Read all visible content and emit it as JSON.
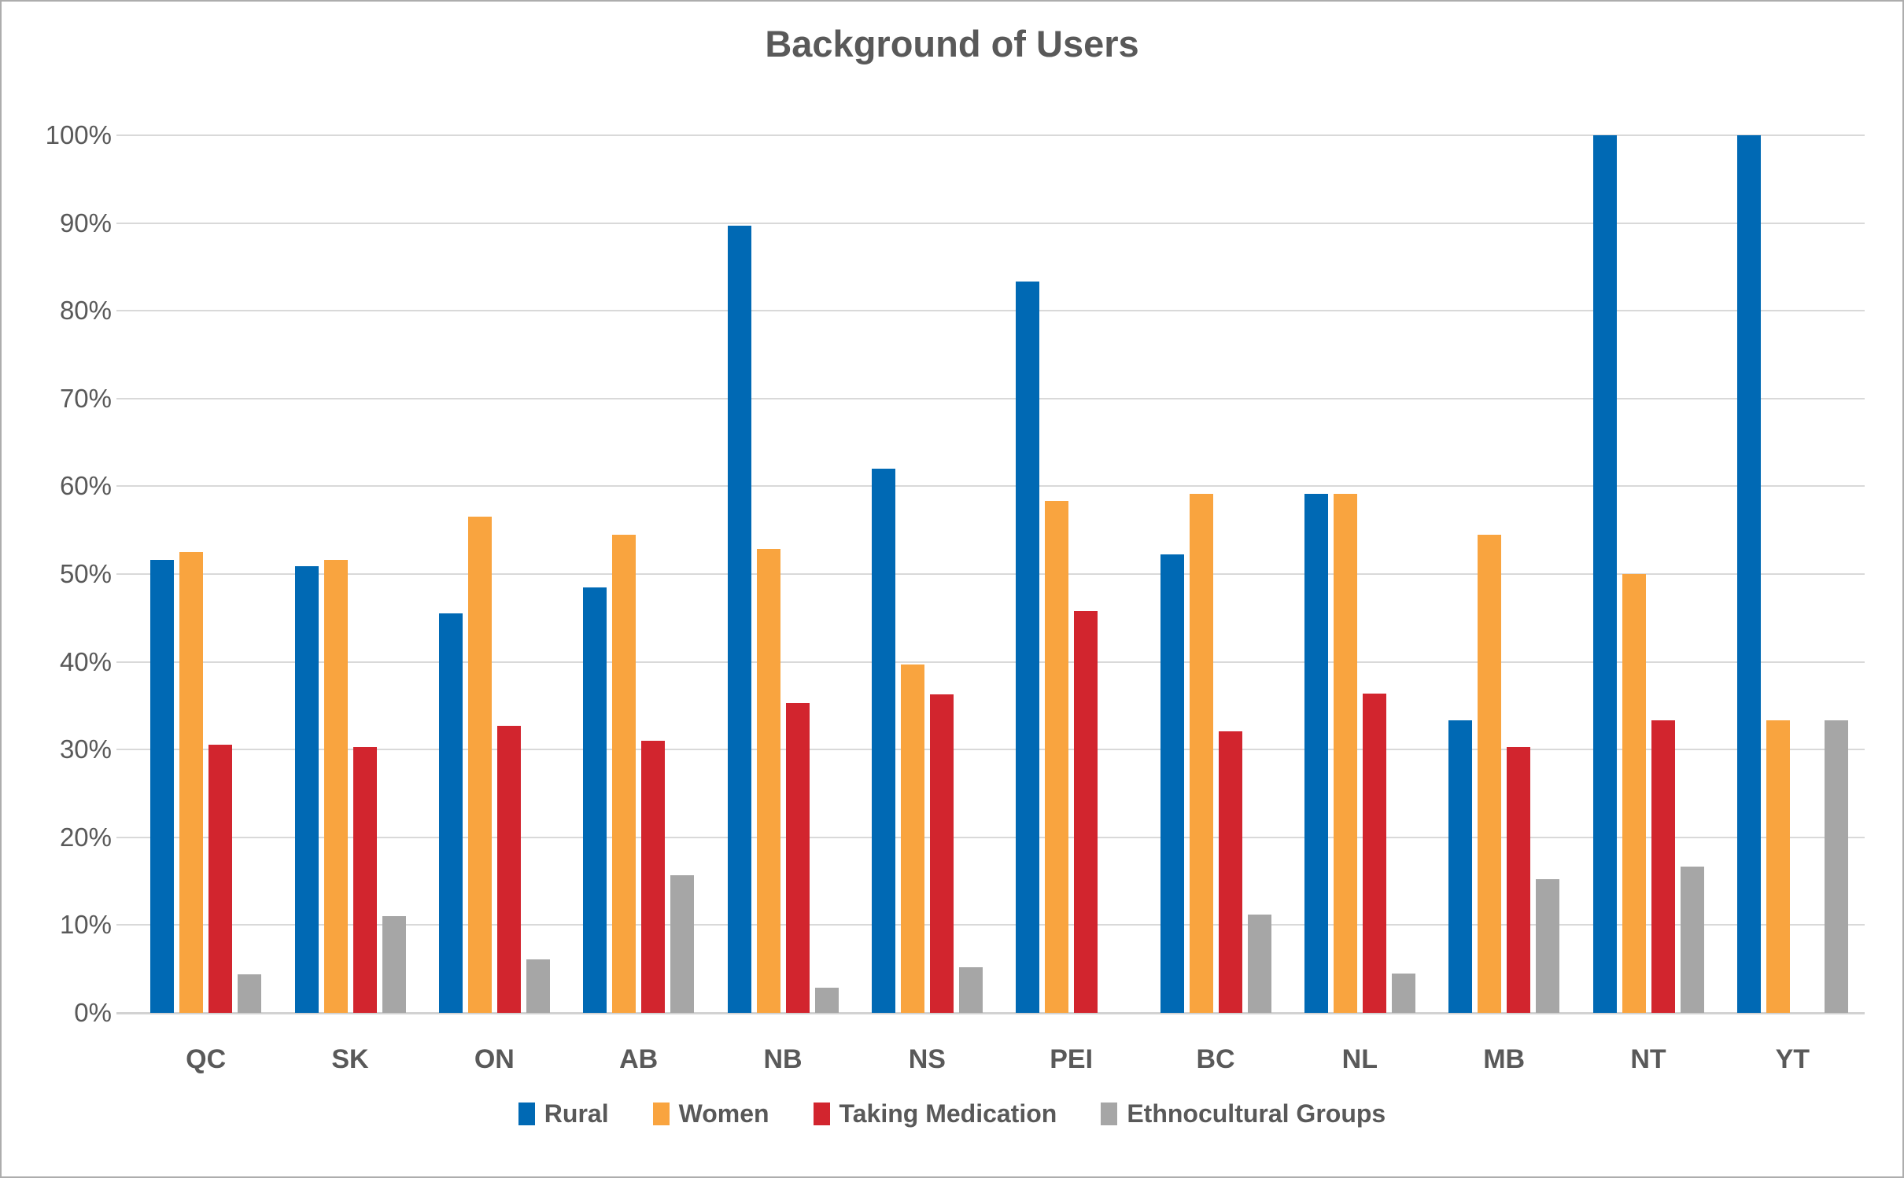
{
  "title": "Background of Users",
  "colors": {
    "text": "#595959",
    "gridline": "#d9d9d9",
    "axis_line": "#d2d2d2",
    "series_rural": "#0069B4",
    "series_women": "#F9A43F",
    "series_taking_medication": "#D2252E",
    "series_ethnocultural": "#A6A6A6"
  },
  "chart_data": {
    "type": "bar",
    "title": "Background of Users",
    "xlabel": "",
    "ylabel": "",
    "ylim": [
      0,
      100
    ],
    "grid": true,
    "legend_position": "bottom",
    "y_tick_labels": [
      "0%",
      "10%",
      "20%",
      "30%",
      "40%",
      "50%",
      "60%",
      "70%",
      "80%",
      "90%",
      "100%"
    ],
    "categories": [
      "QC",
      "SK",
      "ON",
      "AB",
      "NB",
      "NS",
      "PEI",
      "BC",
      "NL",
      "MB",
      "NT",
      "YT"
    ],
    "series": [
      {
        "name": "Rural",
        "color": "#0069B4",
        "values": [
          51.6,
          50.9,
          45.5,
          48.5,
          89.7,
          62.0,
          83.3,
          52.2,
          59.1,
          33.3,
          100,
          100
        ]
      },
      {
        "name": "Women",
        "color": "#F9A43F",
        "values": [
          52.5,
          51.6,
          56.5,
          54.5,
          52.9,
          39.7,
          58.3,
          59.1,
          59.1,
          54.5,
          50.0,
          33.3
        ]
      },
      {
        "name": "Taking Medication",
        "color": "#D2252E",
        "values": [
          30.6,
          30.3,
          32.7,
          31.0,
          35.3,
          36.3,
          45.8,
          32.1,
          36.4,
          30.3,
          33.3,
          0
        ]
      },
      {
        "name": "Ethnocultural Groups",
        "color": "#A6A6A6",
        "values": [
          4.4,
          11.0,
          6.1,
          15.7,
          2.9,
          5.2,
          0,
          11.2,
          4.5,
          15.2,
          16.7,
          33.3
        ]
      }
    ]
  }
}
